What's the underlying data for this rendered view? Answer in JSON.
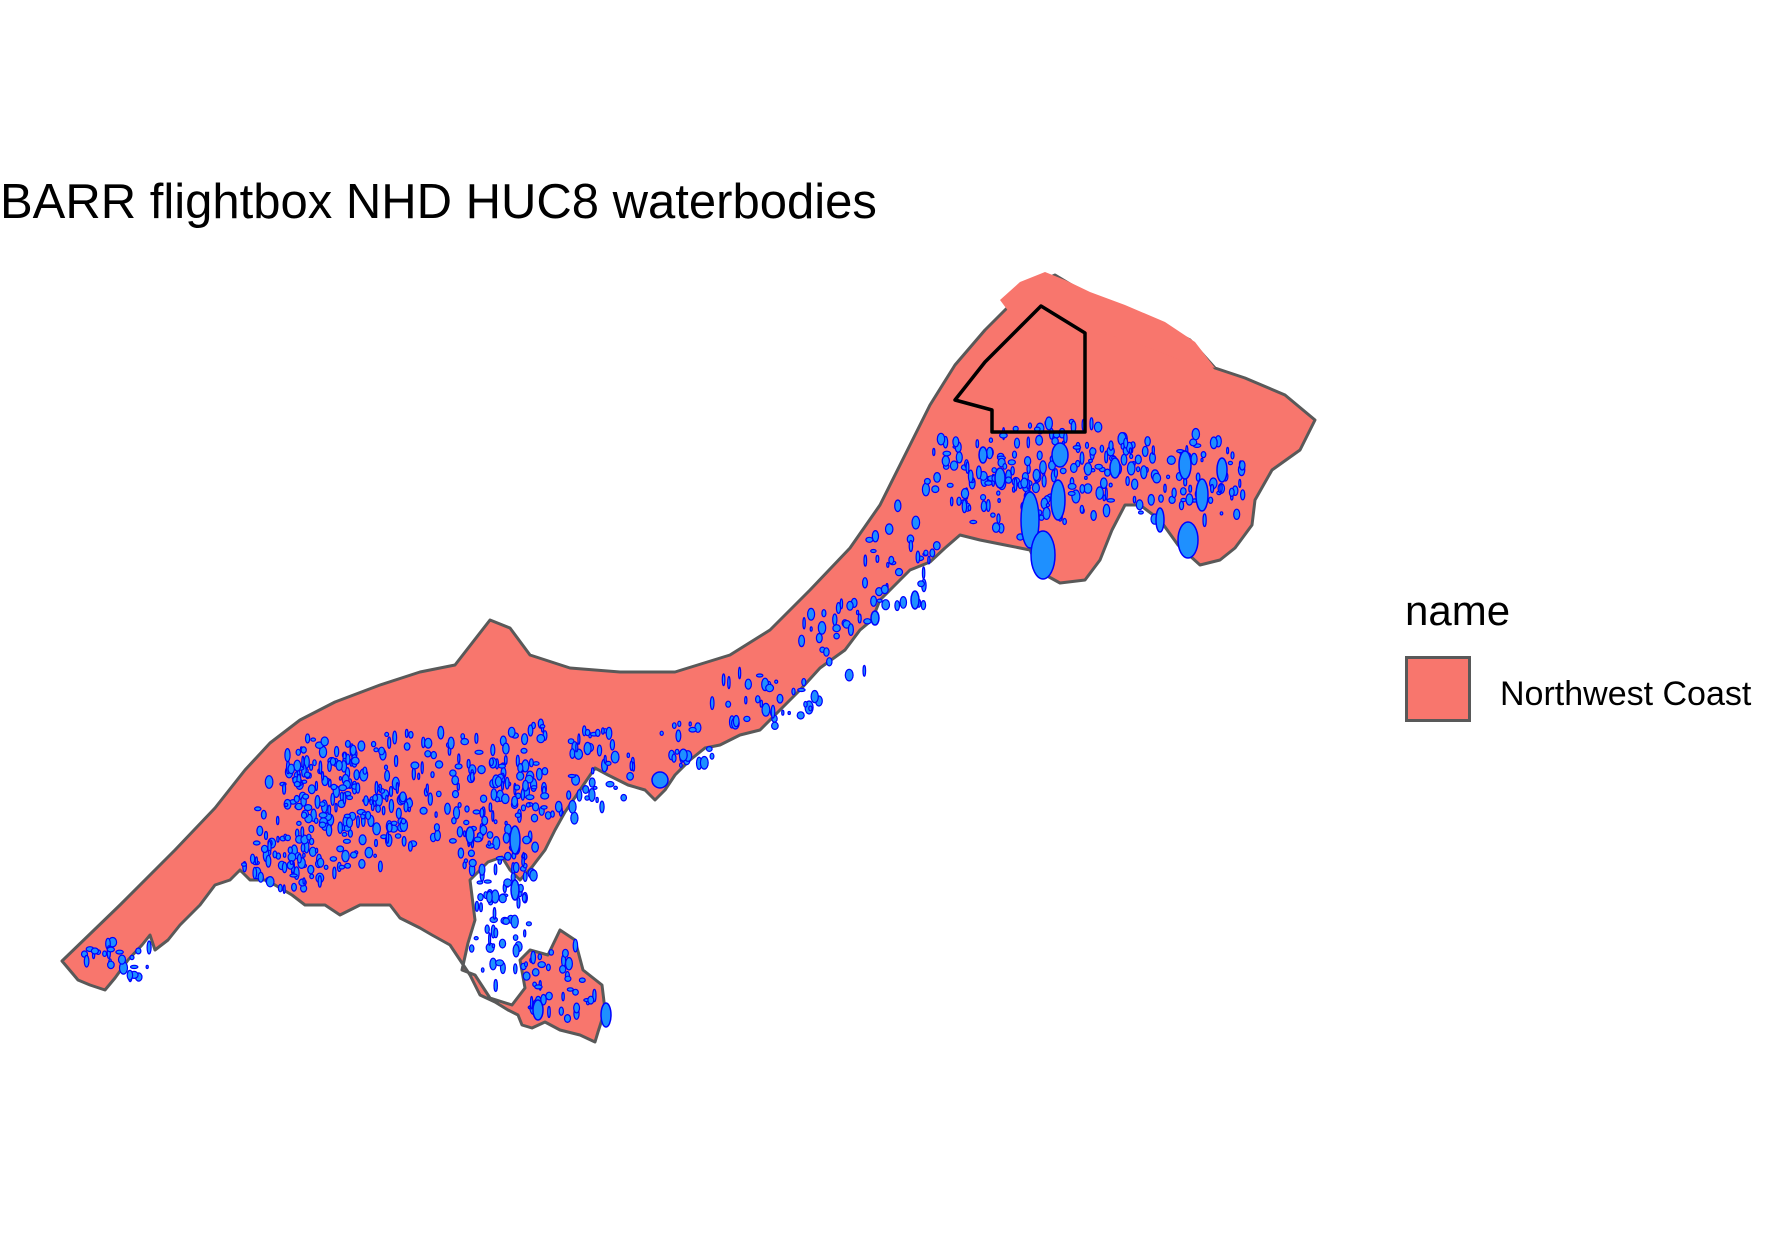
{
  "map": {
    "title": "BARR flightbox NHD HUC8 waterbodies"
  },
  "legend": {
    "title": "name",
    "items": [
      {
        "label": "Northwest Coast",
        "fill": "#F8766D"
      }
    ]
  },
  "colors": {
    "region_fill": "#F8766D",
    "region_outline": "#595959",
    "water_fill": "#1E90FF",
    "water_outline": "#0000FF",
    "flightbox_outline": "#000000"
  }
}
